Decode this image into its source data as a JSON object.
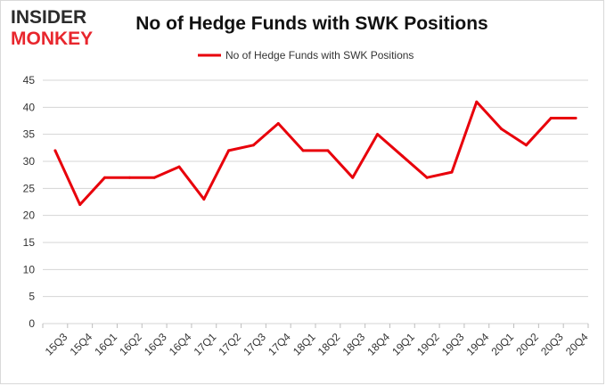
{
  "logo": {
    "line1": "INSIDER",
    "line2": "MONKEY",
    "color_dark": "#2b2b2b",
    "color_accent": "#e8262d"
  },
  "chart_data": {
    "type": "line",
    "title": "No of Hedge Funds with SWK Positions",
    "xlabel": "",
    "ylabel": "",
    "categories": [
      "15Q3",
      "15Q4",
      "16Q1",
      "16Q2",
      "16Q3",
      "16Q4",
      "17Q1",
      "17Q2",
      "17Q3",
      "17Q4",
      "18Q1",
      "18Q2",
      "18Q3",
      "18Q4",
      "19Q1",
      "19Q2",
      "19Q3",
      "19Q4",
      "20Q1",
      "20Q2",
      "20Q3",
      "20Q4"
    ],
    "series": [
      {
        "name": "No of Hedge Funds with SWK Positions",
        "color": "#e8000b",
        "values": [
          32,
          22,
          27,
          27,
          27,
          29,
          23,
          32,
          33,
          37,
          32,
          32,
          27,
          35,
          31,
          27,
          28,
          41,
          36,
          33,
          38,
          38
        ]
      }
    ],
    "ylim": [
      0,
      45
    ],
    "yticks": [
      0,
      5,
      10,
      15,
      20,
      25,
      30,
      35,
      40,
      45
    ],
    "grid": true,
    "legend_position": "top-center"
  }
}
